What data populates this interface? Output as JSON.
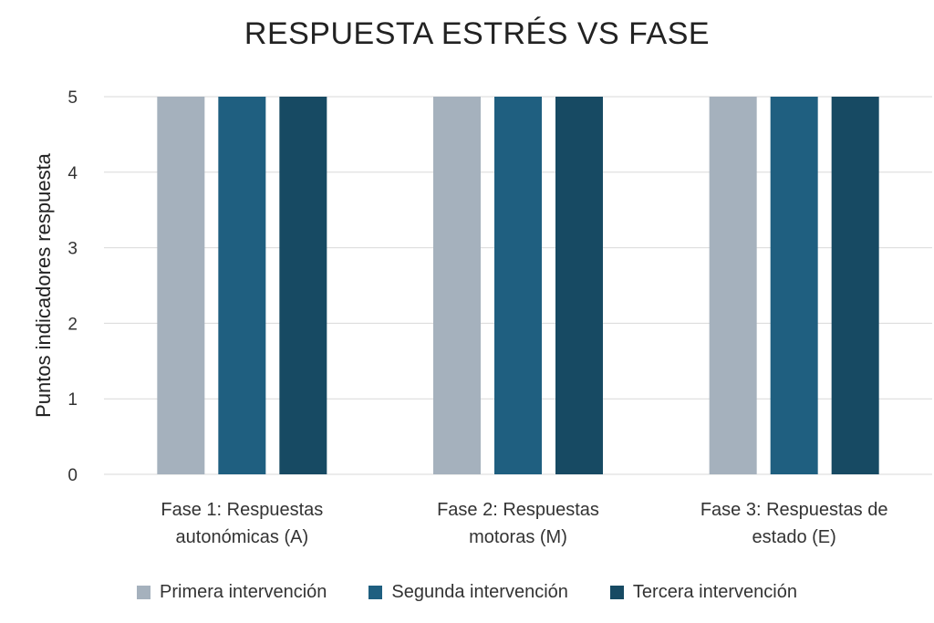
{
  "chart_data": {
    "type": "bar",
    "title": "RESPUESTA ESTRÉS VS FASE",
    "xlabel": "",
    "ylabel": "Puntos indicadores respuesta",
    "ylim": [
      0,
      5
    ],
    "yticks": [
      0,
      1,
      2,
      3,
      4,
      5
    ],
    "grid": true,
    "legend_position": "bottom",
    "categories": [
      [
        "Fase 1: Respuestas",
        "autonómicas (A)"
      ],
      [
        "Fase 2: Respuestas",
        "motoras (M)"
      ],
      [
        "Fase 3: Respuestas de",
        "estado (E)"
      ]
    ],
    "series": [
      {
        "name": "Primera intervención",
        "color": "#a5b1bd",
        "values": [
          5,
          5,
          5
        ]
      },
      {
        "name": "Segunda intervención",
        "color": "#1f5f80",
        "values": [
          5,
          5,
          5
        ]
      },
      {
        "name": "Tercera intervención",
        "color": "#174a63",
        "values": [
          5,
          5,
          5
        ]
      }
    ]
  }
}
